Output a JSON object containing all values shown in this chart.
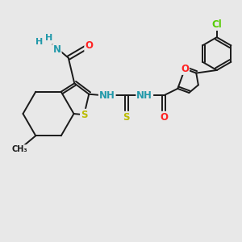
{
  "bg_color": "#e8e8e8",
  "bond_color": "#1a1a1a",
  "bond_width": 1.4,
  "dbo": 0.06,
  "atom_colors": {
    "N": "#2299aa",
    "O": "#ff2222",
    "S": "#bbbb00",
    "Cl": "#55cc00",
    "C": "#1a1a1a",
    "H": "#2299aa"
  },
  "fs": 8.5,
  "figsize": [
    3.0,
    3.0
  ],
  "dpi": 100,
  "xlim": [
    0,
    10
  ],
  "ylim": [
    0,
    10
  ]
}
